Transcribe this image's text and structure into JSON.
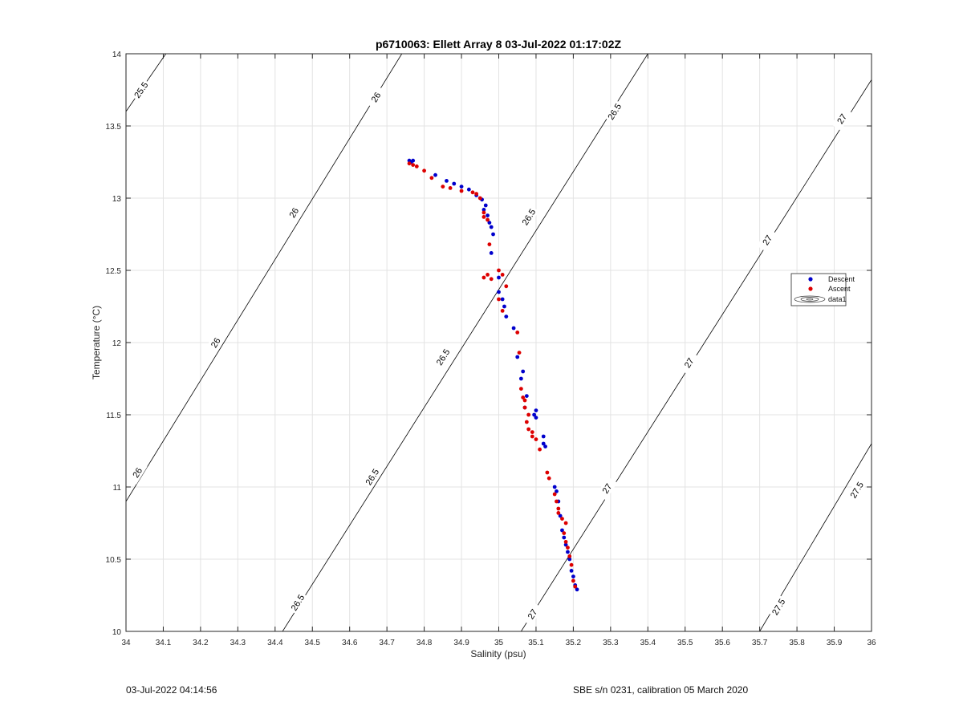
{
  "footer": {
    "left": "03-Jul-2022 04:14:56",
    "right": "SBE s/n 0231, calibration 05 March 2020"
  },
  "chart_data": {
    "type": "scatter",
    "title": "p6710063: Ellett Array 8 03-Jul-2022 01:17:02Z",
    "xlabel": "Salinity (psu)",
    "ylabel": "Temperature (°C)",
    "xlim": [
      34,
      36
    ],
    "ylim": [
      10,
      14
    ],
    "xticks": [
      34,
      34.1,
      34.2,
      34.3,
      34.4,
      34.5,
      34.6,
      34.7,
      34.8,
      34.9,
      35,
      35.1,
      35.2,
      35.3,
      35.4,
      35.5,
      35.6,
      35.7,
      35.8,
      35.9,
      36
    ],
    "yticks": [
      10,
      10.5,
      11,
      11.5,
      12,
      12.5,
      13,
      13.5,
      14
    ],
    "grid": true,
    "legend": {
      "placement": "right",
      "entries": [
        "Descent",
        "Ascent",
        "data1"
      ]
    },
    "colors": {
      "descent": "#0000cc",
      "ascent": "#dd0000",
      "contour": "#000000",
      "grid": "#e3e3e3"
    },
    "contours": [
      {
        "level": 25.5,
        "label": "25.5",
        "points": [
          [
            34.0,
            13.6
          ],
          [
            34.107,
            14.0
          ]
        ],
        "labels_at": [
          [
            34.04,
            13.75
          ]
        ]
      },
      {
        "level": 26,
        "label": "26",
        "points": [
          [
            34.0,
            10.9
          ],
          [
            34.74,
            14.0
          ]
        ],
        "labels_at": [
          [
            34.03,
            11.1
          ],
          [
            34.24,
            12.0
          ],
          [
            34.45,
            12.9
          ],
          [
            34.67,
            13.7
          ]
        ]
      },
      {
        "level": 26.5,
        "label": "26.5",
        "points": [
          [
            34.42,
            10.0
          ],
          [
            35.4,
            14.0
          ]
        ],
        "labels_at": [
          [
            34.46,
            10.2
          ],
          [
            34.66,
            11.07
          ],
          [
            34.85,
            11.9
          ],
          [
            35.08,
            12.87
          ],
          [
            35.31,
            13.6
          ]
        ]
      },
      {
        "level": 27,
        "label": "27",
        "points": [
          [
            35.06,
            10.0
          ],
          [
            36.0,
            13.82
          ]
        ],
        "labels_at": [
          [
            35.09,
            10.12
          ],
          [
            35.29,
            10.99
          ],
          [
            35.51,
            11.86
          ],
          [
            35.72,
            12.71
          ],
          [
            35.92,
            13.55
          ]
        ]
      },
      {
        "level": 27.5,
        "label": "27.5",
        "points": [
          [
            35.7,
            10.0
          ],
          [
            36.0,
            11.3
          ]
        ],
        "labels_at": [
          [
            35.75,
            10.17
          ],
          [
            35.96,
            10.98
          ]
        ]
      }
    ],
    "series": [
      {
        "name": "Descent",
        "points": [
          [
            34.76,
            13.26
          ],
          [
            34.765,
            13.25
          ],
          [
            34.77,
            13.26
          ],
          [
            34.83,
            13.16
          ],
          [
            34.86,
            13.12
          ],
          [
            34.88,
            13.1
          ],
          [
            34.9,
            13.08
          ],
          [
            34.92,
            13.06
          ],
          [
            34.94,
            13.02
          ],
          [
            34.955,
            12.99
          ],
          [
            34.965,
            12.95
          ],
          [
            34.96,
            12.92
          ],
          [
            34.97,
            12.88
          ],
          [
            34.975,
            12.83
          ],
          [
            34.98,
            12.8
          ],
          [
            34.985,
            12.75
          ],
          [
            34.98,
            12.62
          ],
          [
            35.0,
            12.45
          ],
          [
            35.0,
            12.35
          ],
          [
            35.01,
            12.3
          ],
          [
            35.015,
            12.25
          ],
          [
            35.02,
            12.18
          ],
          [
            35.04,
            12.1
          ],
          [
            35.05,
            11.9
          ],
          [
            35.065,
            11.8
          ],
          [
            35.06,
            11.75
          ],
          [
            35.075,
            11.63
          ],
          [
            35.07,
            11.55
          ],
          [
            35.1,
            11.53
          ],
          [
            35.1,
            11.48
          ],
          [
            35.095,
            11.5
          ],
          [
            35.12,
            11.35
          ],
          [
            35.12,
            11.3
          ],
          [
            35.125,
            11.28
          ],
          [
            35.15,
            11.0
          ],
          [
            35.155,
            10.97
          ],
          [
            35.16,
            10.9
          ],
          [
            35.165,
            10.8
          ],
          [
            35.17,
            10.7
          ],
          [
            35.175,
            10.65
          ],
          [
            35.18,
            10.6
          ],
          [
            35.185,
            10.55
          ],
          [
            35.19,
            10.5
          ],
          [
            35.195,
            10.42
          ],
          [
            35.2,
            10.38
          ],
          [
            35.205,
            10.32
          ],
          [
            35.21,
            10.29
          ]
        ]
      },
      {
        "name": "Ascent",
        "points": [
          [
            34.76,
            13.24
          ],
          [
            34.77,
            13.23
          ],
          [
            34.78,
            13.22
          ],
          [
            34.8,
            13.19
          ],
          [
            34.82,
            13.14
          ],
          [
            34.85,
            13.08
          ],
          [
            34.87,
            13.07
          ],
          [
            34.9,
            13.05
          ],
          [
            34.93,
            13.04
          ],
          [
            34.94,
            13.03
          ],
          [
            34.95,
            13.0
          ],
          [
            34.96,
            12.9
          ],
          [
            34.96,
            12.87
          ],
          [
            34.97,
            12.85
          ],
          [
            34.975,
            12.68
          ],
          [
            34.96,
            12.45
          ],
          [
            34.97,
            12.47
          ],
          [
            34.98,
            12.44
          ],
          [
            35.0,
            12.5
          ],
          [
            35.01,
            12.47
          ],
          [
            35.0,
            12.3
          ],
          [
            35.02,
            12.39
          ],
          [
            35.01,
            12.22
          ],
          [
            35.05,
            12.07
          ],
          [
            35.055,
            11.93
          ],
          [
            35.06,
            11.68
          ],
          [
            35.065,
            11.62
          ],
          [
            35.07,
            11.6
          ],
          [
            35.07,
            11.55
          ],
          [
            35.08,
            11.5
          ],
          [
            35.075,
            11.45
          ],
          [
            35.08,
            11.4
          ],
          [
            35.09,
            11.38
          ],
          [
            35.1,
            11.33
          ],
          [
            35.09,
            11.35
          ],
          [
            35.11,
            11.26
          ],
          [
            35.13,
            11.1
          ],
          [
            35.135,
            11.06
          ],
          [
            35.15,
            10.95
          ],
          [
            35.155,
            10.9
          ],
          [
            35.16,
            10.85
          ],
          [
            35.16,
            10.82
          ],
          [
            35.17,
            10.78
          ],
          [
            35.18,
            10.75
          ],
          [
            35.175,
            10.68
          ],
          [
            35.18,
            10.62
          ],
          [
            35.185,
            10.58
          ],
          [
            35.19,
            10.52
          ],
          [
            35.195,
            10.46
          ],
          [
            35.2,
            10.35
          ],
          [
            35.205,
            10.31
          ]
        ]
      }
    ]
  }
}
